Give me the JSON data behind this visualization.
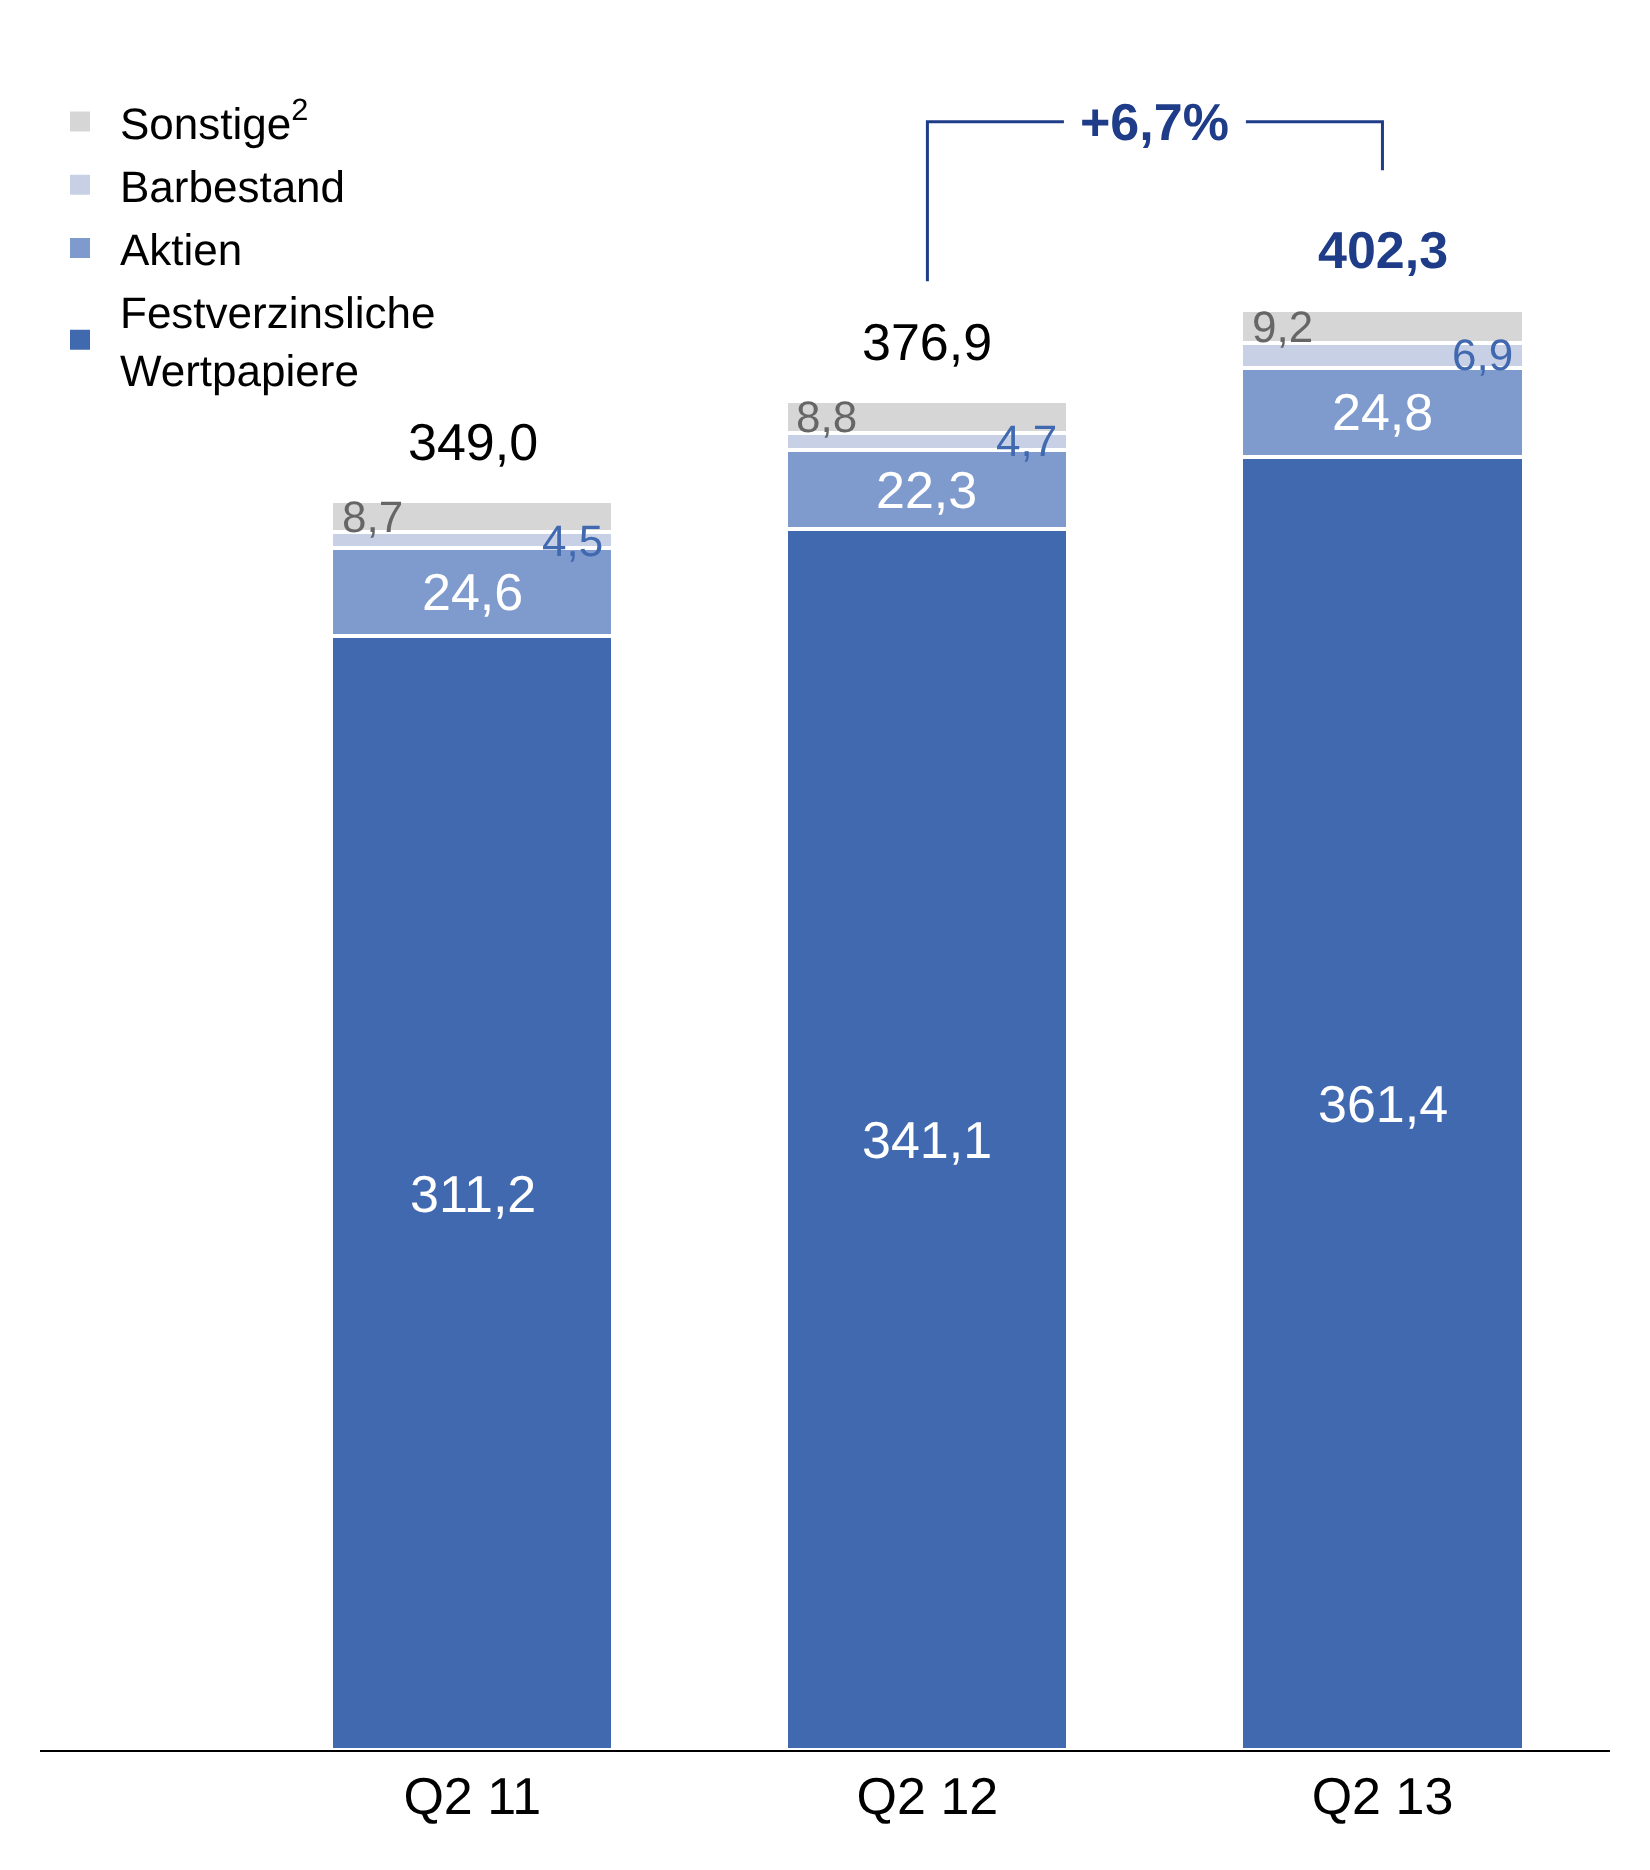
{
  "chart_data": {
    "type": "bar",
    "stacked": true,
    "categories": [
      "Q2 11",
      "Q2 12",
      "Q2 13"
    ],
    "series": [
      {
        "name": "Festverzinsliche Wertpapiere",
        "color": "#4169b0",
        "values": [
          311.2,
          341.1,
          361.4
        ],
        "value_labels": [
          "311,2",
          "341,1",
          "361,4"
        ]
      },
      {
        "name": "Aktien",
        "color": "#7f9acd",
        "values": [
          24.6,
          22.3,
          24.8
        ],
        "value_labels": [
          "24,6",
          "22,3",
          "24,8"
        ]
      },
      {
        "name": "Barbestand",
        "color": "#c8d0e6",
        "values": [
          4.5,
          4.7,
          6.9
        ],
        "value_labels": [
          "4,5",
          "4,7",
          "6,9"
        ]
      },
      {
        "name": "Sonstige$^{2}$",
        "color": "#d6d6d6",
        "values": [
          8.7,
          8.8,
          9.2
        ],
        "value_labels": [
          "8,7",
          "8,8",
          "9,2"
        ]
      }
    ],
    "totals": [
      "349,0",
      "376,9",
      "402,3"
    ],
    "annotations": [
      "+6,7%"
    ],
    "legend": "top left"
  }
}
